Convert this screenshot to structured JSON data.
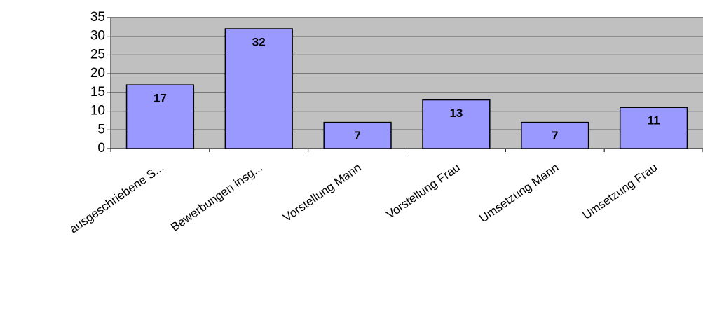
{
  "chart_data": {
    "type": "bar",
    "categories": [
      "ausgeschriebene S...",
      "Bewerbungen insg...",
      "Vorstellung Mann",
      "Vorstellung Frau",
      "Umsetzung Mann",
      "Umsetzung Frau"
    ],
    "values": [
      17,
      32,
      7,
      13,
      7,
      11
    ],
    "color": "#9999ff",
    "ylim": [
      0,
      35
    ],
    "yticks": [
      0,
      5,
      10,
      15,
      20,
      25,
      30,
      35
    ],
    "grid": true
  }
}
